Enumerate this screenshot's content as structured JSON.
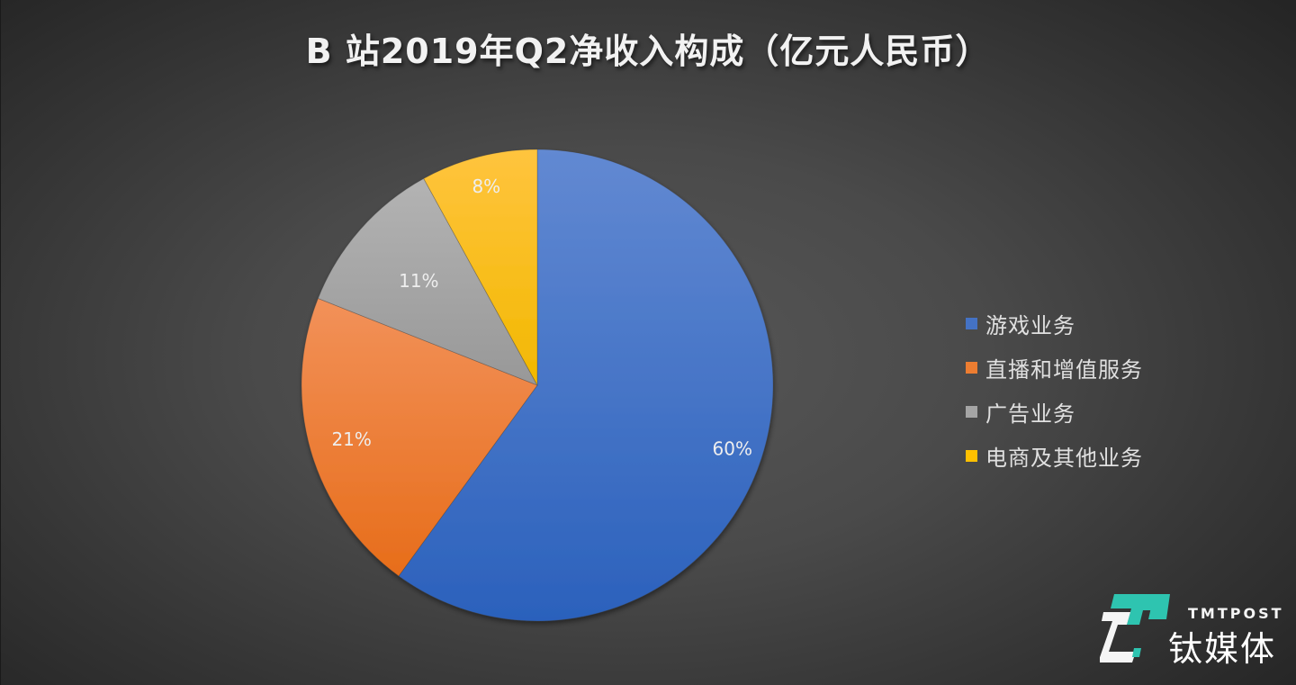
{
  "title": "B 站2019年Q2净收入构成（亿元人民币）",
  "legend": {
    "items": [
      {
        "label": "游戏业务",
        "color": "#4472c4"
      },
      {
        "label": "直播和增值服务",
        "color": "#ed7d31"
      },
      {
        "label": "广告业务",
        "color": "#a5a5a5"
      },
      {
        "label": "电商及其他业务",
        "color": "#ffc000"
      }
    ]
  },
  "slice_labels": [
    "60%",
    "21%",
    "11%",
    "8%"
  ],
  "watermark": {
    "brand_en": "TMTPOST",
    "brand_cn": "钛媒体",
    "accent_color": "#2ec4b0"
  },
  "chart_data": {
    "type": "pie",
    "title": "B 站2019年Q2净收入构成（亿元人民币）",
    "categories": [
      "游戏业务",
      "直播和增值服务",
      "广告业务",
      "电商及其他业务"
    ],
    "values": [
      60,
      21,
      11,
      8
    ],
    "unit": "%",
    "colors": [
      "#4472c4",
      "#ed7d31",
      "#a5a5a5",
      "#ffc000"
    ],
    "start_angle": "12 o'clock",
    "direction": "clockwise",
    "data_labels": [
      "60%",
      "21%",
      "11%",
      "8%"
    ],
    "legend_position": "right"
  }
}
